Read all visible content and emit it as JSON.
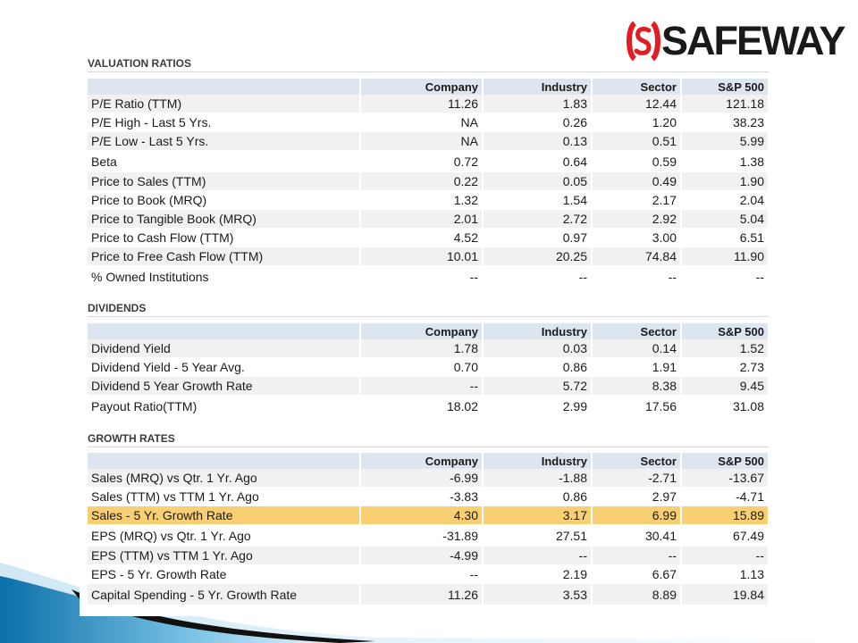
{
  "brand": {
    "logo_text": "SAFEWAY",
    "logo_color": "#e31b23"
  },
  "columns": [
    "",
    "Company",
    "Industry",
    "Sector",
    "S&P 500"
  ],
  "sections": [
    {
      "title": "VALUATION RATIOS",
      "rows": [
        [
          "P/E Ratio (TTM)",
          "11.26",
          "1.83",
          "12.44",
          "121.18"
        ],
        [
          "P/E High - Last 5 Yrs.",
          "NA",
          "0.26",
          "1.20",
          "38.23"
        ],
        [
          "P/E Low - Last 5 Yrs.",
          "NA",
          "0.13",
          "0.51",
          "5.99"
        ],
        [
          "Beta",
          "0.72",
          "0.64",
          "0.59",
          "1.38"
        ],
        [
          "Price to Sales (TTM)",
          "0.22",
          "0.05",
          "0.49",
          "1.90"
        ],
        [
          "Price to Book (MRQ)",
          "1.32",
          "1.54",
          "2.17",
          "2.04"
        ],
        [
          "Price to Tangible Book (MRQ)",
          "2.01",
          "2.72",
          "2.92",
          "5.04"
        ],
        [
          "Price to Cash Flow (TTM)",
          "4.52",
          "0.97",
          "3.00",
          "6.51"
        ],
        [
          "Price to Free Cash Flow (TTM)",
          "10.01",
          "20.25",
          "74.84",
          "11.90"
        ],
        [
          "% Owned Institutions",
          "--",
          "--",
          "--",
          "--"
        ]
      ]
    },
    {
      "title": "DIVIDENDS",
      "rows": [
        [
          "Dividend Yield",
          "1.78",
          "0.03",
          "0.14",
          "1.52"
        ],
        [
          "Dividend Yield - 5 Year Avg.",
          "0.70",
          "0.86",
          "1.91",
          "2.73"
        ],
        [
          "Dividend 5 Year Growth Rate",
          "--",
          "5.72",
          "8.38",
          "9.45"
        ],
        [
          "Payout Ratio(TTM)",
          "18.02",
          "2.99",
          "17.56",
          "31.08"
        ]
      ]
    },
    {
      "title": "GROWTH RATES",
      "rows": [
        [
          "Sales (MRQ) vs Qtr. 1 Yr. Ago",
          "-6.99",
          "-1.88",
          "-2.71",
          "-13.67"
        ],
        [
          "Sales (TTM) vs TTM 1 Yr. Ago",
          "-3.83",
          "0.86",
          "2.97",
          "-4.71"
        ],
        [
          "Sales - 5 Yr. Growth Rate",
          "4.30",
          "3.17",
          "6.99",
          "15.89"
        ],
        [
          "EPS (MRQ) vs Qtr. 1 Yr. Ago",
          "-31.89",
          "27.51",
          "30.41",
          "67.49"
        ],
        [
          "EPS (TTM) vs TTM 1 Yr. Ago",
          "-4.99",
          "--",
          "--",
          "--"
        ],
        [
          "EPS - 5 Yr. Growth Rate",
          "--",
          "2.19",
          "6.67",
          "1.13"
        ],
        [
          "Capital Spending - 5 Yr. Growth Rate",
          "11.26",
          "3.53",
          "8.89",
          "19.84"
        ]
      ],
      "highlight_row_label": "Sales - 5 Yr. Growth Rate",
      "highlight_color": "#f9cf73"
    }
  ]
}
